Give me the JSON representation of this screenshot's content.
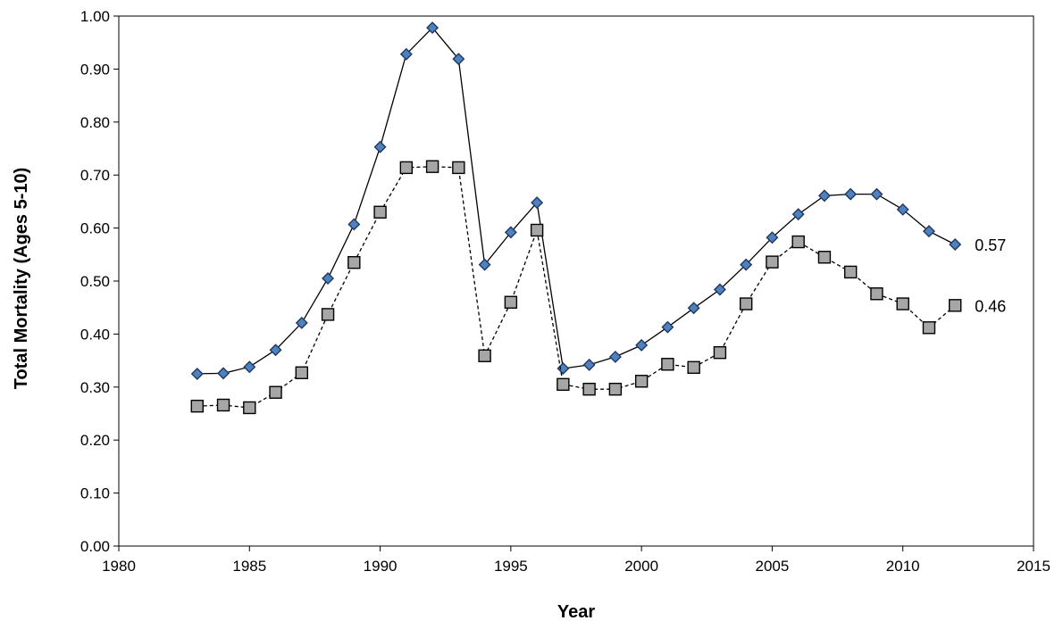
{
  "chart_data": {
    "type": "line",
    "title": "",
    "xlabel": "Year",
    "ylabel": "Total Mortality (Ages 5-10)",
    "xlim": [
      1980,
      2015
    ],
    "ylim": [
      0.0,
      1.0
    ],
    "x_ticks": [
      "1980",
      "1985",
      "1990",
      "1995",
      "2000",
      "2005",
      "2010",
      "2015"
    ],
    "y_ticks": [
      "0.00",
      "0.10",
      "0.20",
      "0.30",
      "0.40",
      "0.50",
      "0.60",
      "0.70",
      "0.80",
      "0.90",
      "1.00"
    ],
    "grid": false,
    "legend": "none",
    "x": [
      1983,
      1984,
      1985,
      1986,
      1987,
      1988,
      1989,
      1990,
      1991,
      1992,
      1993,
      1994,
      1995,
      1996,
      1997,
      1998,
      1999,
      2000,
      2001,
      2002,
      2003,
      2004,
      2005,
      2006,
      2007,
      2008,
      2009,
      2010,
      2011,
      2012
    ],
    "series": [
      {
        "marker": "diamond",
        "line_style": "solid",
        "marker_color": "#4f81bd",
        "end_label": "0.57",
        "values": [
          0.325,
          0.326,
          0.338,
          0.37,
          0.421,
          0.505,
          0.607,
          0.753,
          0.928,
          0.978,
          0.919,
          0.531,
          0.592,
          0.648,
          0.335,
          0.342,
          0.357,
          0.379,
          0.413,
          0.449,
          0.484,
          0.531,
          0.582,
          0.626,
          0.661,
          0.664,
          0.664,
          0.635,
          0.594,
          0.569
        ]
      },
      {
        "marker": "square",
        "line_style": "dashed",
        "marker_color": "#a6a6a6",
        "end_label": "0.46",
        "values": [
          0.264,
          0.266,
          0.261,
          0.29,
          0.327,
          0.437,
          0.535,
          0.63,
          0.714,
          0.716,
          0.714,
          0.359,
          0.46,
          0.596,
          0.305,
          0.296,
          0.296,
          0.311,
          0.343,
          0.337,
          0.365,
          0.457,
          0.536,
          0.574,
          0.545,
          0.517,
          0.476,
          0.457,
          0.412,
          0.454
        ]
      }
    ]
  }
}
